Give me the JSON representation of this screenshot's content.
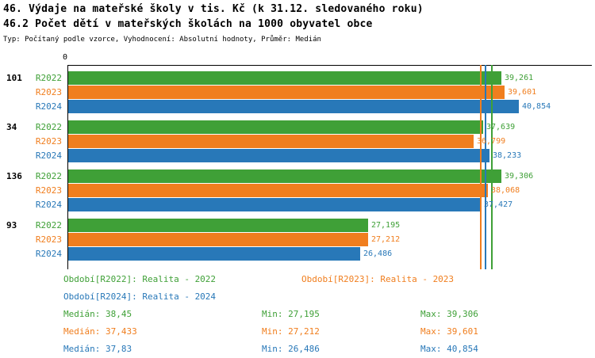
{
  "chart_data": {
    "type": "bar",
    "orientation": "horizontal",
    "title": "46. Výdaje na mateřské školy v tis. Kč (k 31.12. sledovaného roku)",
    "title2": "46.2 Počet dětí v mateřských školách na 1000 obyvatel obce",
    "note": "Typ: Počítaný podle vzorce, Vyhodnocení: Absolutní hodnoty, Průměr: Medián",
    "legend_position": "bottom",
    "axis": {
      "min": 0,
      "max": 47.5,
      "tick_labels": [
        "0"
      ]
    },
    "series": [
      "R2022",
      "R2023",
      "R2024"
    ],
    "series_colors": {
      "R2022": "#3FA037",
      "R2023": "#F07E1E",
      "R2024": "#2878B8"
    },
    "groups": [
      {
        "label": "101",
        "bars": [
          {
            "series": "R2022",
            "value": 39.261,
            "display": "39,261"
          },
          {
            "series": "R2023",
            "value": 39.601,
            "display": "39,601"
          },
          {
            "series": "R2024",
            "value": 40.854,
            "display": "40,854"
          }
        ]
      },
      {
        "label": "34",
        "bars": [
          {
            "series": "R2022",
            "value": 37.639,
            "display": "37,639"
          },
          {
            "series": "R2023",
            "value": 36.799,
            "display": "36,799"
          },
          {
            "series": "R2024",
            "value": 38.233,
            "display": "38,233"
          }
        ]
      },
      {
        "label": "136",
        "bars": [
          {
            "series": "R2022",
            "value": 39.306,
            "display": "39,306"
          },
          {
            "series": "R2023",
            "value": 38.068,
            "display": "38,068"
          },
          {
            "series": "R2024",
            "value": 37.427,
            "display": "37,427"
          }
        ]
      },
      {
        "label": "93",
        "bars": [
          {
            "series": "R2022",
            "value": 27.195,
            "display": "27,195"
          },
          {
            "series": "R2023",
            "value": 27.212,
            "display": "27,212"
          },
          {
            "series": "R2024",
            "value": 26.486,
            "display": "26,486"
          }
        ]
      }
    ],
    "median_lines": [
      {
        "series": "R2022",
        "value": 38.45
      },
      {
        "series": "R2023",
        "value": 37.433
      },
      {
        "series": "R2024",
        "value": 37.83
      }
    ]
  },
  "legend": [
    {
      "series": "R2022",
      "label": "Období[R2022]: Realita - 2022"
    },
    {
      "series": "R2023",
      "label": "Období[R2023]: Realita - 2023"
    },
    {
      "series": "R2024",
      "label": "Období[R2024]: Realita - 2024"
    }
  ],
  "stats": [
    {
      "series": "R2022",
      "median": "Medián: 38,45",
      "min": "Min: 27,195",
      "max": "Max: 39,306"
    },
    {
      "series": "R2023",
      "median": "Medián: 37,433",
      "min": "Min: 27,212",
      "max": "Max: 39,601"
    },
    {
      "series": "R2024",
      "median": "Medián: 37,83",
      "min": "Min: 26,486",
      "max": "Max: 40,854"
    }
  ]
}
